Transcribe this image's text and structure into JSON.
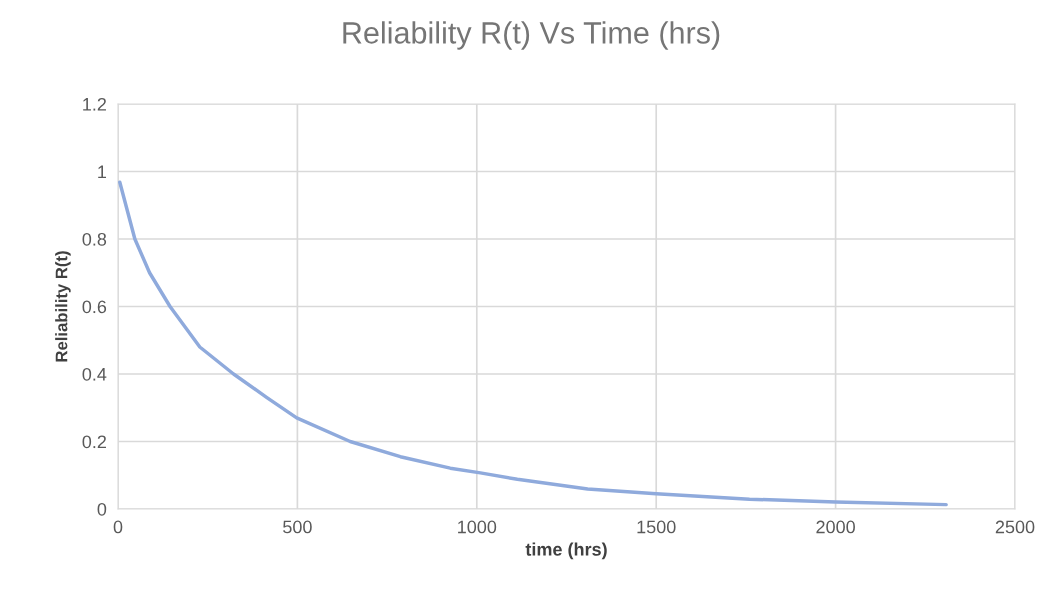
{
  "chart_data": {
    "type": "line",
    "title": "Reliability R(t) Vs Time (hrs)",
    "xlabel": "time (hrs)",
    "ylabel": "Reliability R(t)",
    "series": [
      {
        "color": "#8faadc",
        "x": [
          5,
          47,
          88,
          145,
          228,
          322,
          415,
          498,
          647,
          787,
          926,
          1010,
          1113,
          1309,
          1500,
          1760,
          2000,
          2308
        ],
        "values": [
          0.968,
          0.8,
          0.7,
          0.6,
          0.48,
          0.4,
          0.33,
          0.27,
          0.2,
          0.155,
          0.121,
          0.107,
          0.088,
          0.059,
          0.045,
          0.029,
          0.021,
          0.013
        ]
      }
    ],
    "xlim": [
      0,
      2500
    ],
    "xticks": [
      0,
      500,
      1000,
      1500,
      2000,
      2500
    ],
    "ylim": [
      0,
      1.2
    ],
    "yticks": [
      0,
      0.2,
      0.4,
      0.6,
      0.8,
      1,
      1.2
    ],
    "grid": true,
    "marker": "none",
    "line_style": "solid"
  }
}
